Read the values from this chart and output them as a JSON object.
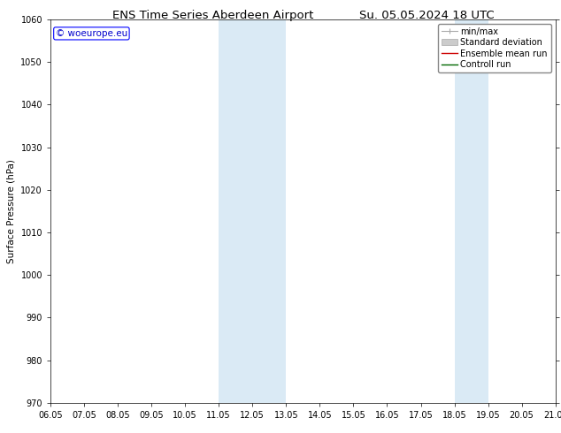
{
  "title": "ENS Time Series Aberdeen Airport",
  "title2": "Su. 05.05.2024 18 UTC",
  "ylabel": "Surface Pressure (hPa)",
  "ylim": [
    970,
    1060
  ],
  "yticks": [
    970,
    980,
    990,
    1000,
    1010,
    1020,
    1030,
    1040,
    1050,
    1060
  ],
  "xlim_num": [
    6.05,
    21.05
  ],
  "xtick_labels": [
    "06.05",
    "07.05",
    "08.05",
    "09.05",
    "10.05",
    "11.05",
    "12.05",
    "13.05",
    "14.05",
    "15.05",
    "16.05",
    "17.05",
    "18.05",
    "19.05",
    "20.05",
    "21.05"
  ],
  "xtick_positions": [
    6.05,
    7.05,
    8.05,
    9.05,
    10.05,
    11.05,
    12.05,
    13.05,
    14.05,
    15.05,
    16.05,
    17.05,
    18.05,
    19.05,
    20.05,
    21.05
  ],
  "shaded_bands": [
    {
      "x_start": 11.05,
      "x_end": 13.05
    },
    {
      "x_start": 18.05,
      "x_end": 19.05
    }
  ],
  "watermark": "© woeurope.eu",
  "watermark_color": "#0000cc",
  "background_color": "#ffffff",
  "plot_bg_color": "#ffffff",
  "shade_color": "#daeaf5",
  "legend_items": [
    {
      "label": "min/max",
      "color": "#aaaaaa",
      "lw": 1.0
    },
    {
      "label": "Standard deviation",
      "color": "#cccccc",
      "lw": 5
    },
    {
      "label": "Ensemble mean run",
      "color": "#cc0000",
      "lw": 1.0
    },
    {
      "label": "Controll run",
      "color": "#006600",
      "lw": 1.0
    }
  ],
  "title_fontsize": 9.5,
  "axis_label_fontsize": 7.5,
  "tick_fontsize": 7,
  "legend_fontsize": 7,
  "watermark_fontsize": 7.5
}
